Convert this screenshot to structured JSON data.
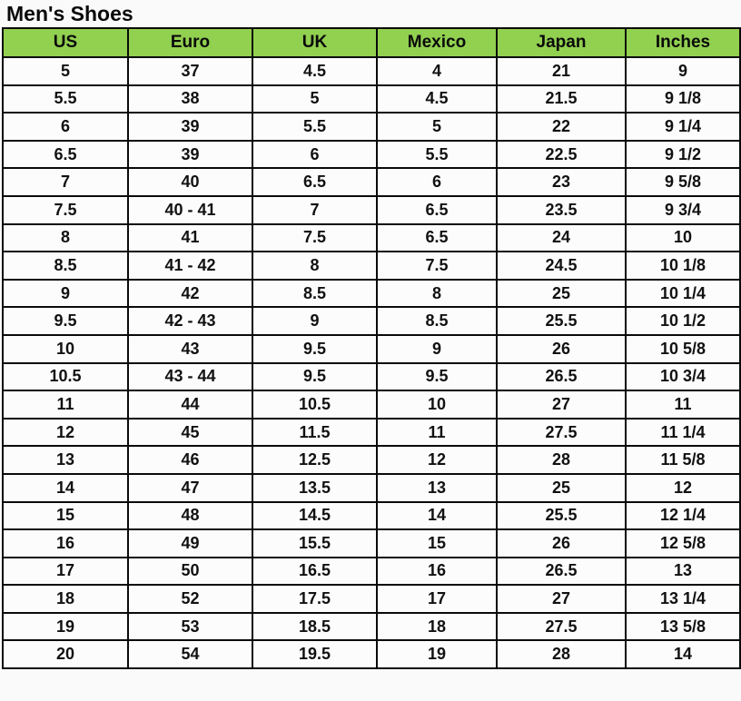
{
  "title": "Men's Shoes",
  "colors": {
    "header_bg": "#92D050",
    "border": "#0a0a0a",
    "cell_bg": "#FCFCFC",
    "page_bg": "#FAFAFA",
    "text": "#000000"
  },
  "table": {
    "columns": [
      "US",
      "Euro",
      "UK",
      "Mexico",
      "Japan",
      "Inches"
    ],
    "rows": [
      [
        "5",
        "37",
        "4.5",
        "4",
        "21",
        "9"
      ],
      [
        "5.5",
        "38",
        "5",
        "4.5",
        "21.5",
        "9 1/8"
      ],
      [
        "6",
        "39",
        "5.5",
        "5",
        "22",
        "9 1/4"
      ],
      [
        "6.5",
        "39",
        "6",
        "5.5",
        "22.5",
        "9 1/2"
      ],
      [
        "7",
        "40",
        "6.5",
        "6",
        "23",
        "9 5/8"
      ],
      [
        "7.5",
        "40 - 41",
        "7",
        "6.5",
        "23.5",
        "9 3/4"
      ],
      [
        "8",
        "41",
        "7.5",
        "6.5",
        "24",
        "10"
      ],
      [
        "8.5",
        "41 - 42",
        "8",
        "7.5",
        "24.5",
        "10 1/8"
      ],
      [
        "9",
        "42",
        "8.5",
        "8",
        "25",
        "10 1/4"
      ],
      [
        "9.5",
        "42 - 43",
        "9",
        "8.5",
        "25.5",
        "10 1/2"
      ],
      [
        "10",
        "43",
        "9.5",
        "9",
        "26",
        "10 5/8"
      ],
      [
        "10.5",
        "43 - 44",
        "9.5",
        "9.5",
        "26.5",
        "10 3/4"
      ],
      [
        "11",
        "44",
        "10.5",
        "10",
        "27",
        "11"
      ],
      [
        "12",
        "45",
        "11.5",
        "11",
        "27.5",
        "11 1/4"
      ],
      [
        "13",
        "46",
        "12.5",
        "12",
        "28",
        "11 5/8"
      ],
      [
        "14",
        "47",
        "13.5",
        "13",
        "25",
        "12"
      ],
      [
        "15",
        "48",
        "14.5",
        "14",
        "25.5",
        "12 1/4"
      ],
      [
        "16",
        "49",
        "15.5",
        "15",
        "26",
        "12 5/8"
      ],
      [
        "17",
        "50",
        "16.5",
        "16",
        "26.5",
        "13"
      ],
      [
        "18",
        "52",
        "17.5",
        "17",
        "27",
        "13 1/4"
      ],
      [
        "19",
        "53",
        "18.5",
        "18",
        "27.5",
        "13 5/8"
      ],
      [
        "20",
        "54",
        "19.5",
        "19",
        "28",
        "14"
      ]
    ]
  }
}
